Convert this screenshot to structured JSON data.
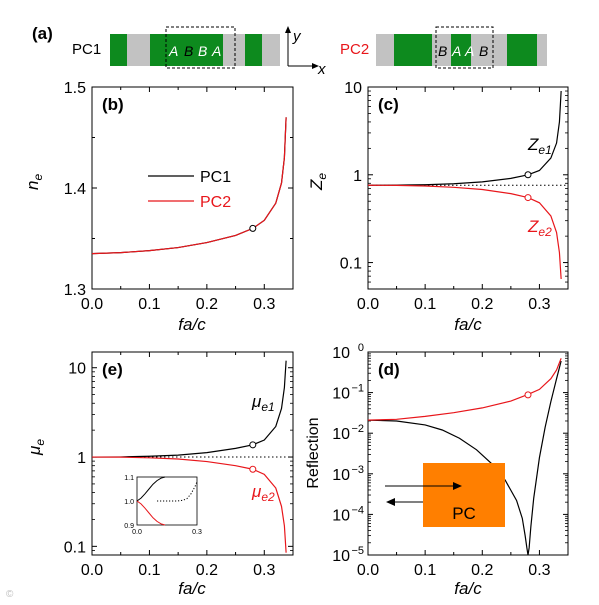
{
  "colors": {
    "pc1": "#000000",
    "pc2": "#e8161b",
    "green": "#0d8a1e",
    "gray": "#c2c2c2",
    "orange": "#ff7f00"
  },
  "panel_a": {
    "label": "(a)",
    "pc1_label": "PC1",
    "pc2_label": "PC2",
    "pc1_cell_letters": [
      "A",
      "B",
      "B",
      "A"
    ],
    "pc2_cell_letters": [
      "B",
      "A",
      "A",
      "B"
    ],
    "axis_x": "x",
    "axis_y": "y"
  },
  "chart_data": [
    {
      "id": "b",
      "type": "line",
      "panel_label": "(b)",
      "xlabel": "fa/c",
      "ylabel": "n_e",
      "ylabel_main": "n",
      "ylabel_sub": "e",
      "xlim": [
        0.0,
        0.35
      ],
      "ylim": [
        1.3,
        1.5
      ],
      "yscale": "linear",
      "xticks": [
        "0.0",
        "0.1",
        "0.2",
        "0.3"
      ],
      "yticks": [
        "1.3",
        "1.4",
        "1.5"
      ],
      "legend": {
        "placement": "upper-left",
        "entries": [
          "PC1",
          "PC2"
        ]
      },
      "series": [
        {
          "name": "PC1",
          "color": "#000000",
          "x": [
            0,
            0.05,
            0.1,
            0.15,
            0.2,
            0.25,
            0.28,
            0.3,
            0.32,
            0.33,
            0.335,
            0.338
          ],
          "y": [
            1.335,
            1.336,
            1.338,
            1.341,
            1.346,
            1.353,
            1.36,
            1.368,
            1.385,
            1.405,
            1.43,
            1.47
          ]
        },
        {
          "name": "PC2",
          "color": "#e8161b",
          "x": [
            0,
            0.05,
            0.1,
            0.15,
            0.2,
            0.25,
            0.28,
            0.3,
            0.32,
            0.33,
            0.335,
            0.338
          ],
          "y": [
            1.335,
            1.336,
            1.338,
            1.341,
            1.346,
            1.353,
            1.36,
            1.368,
            1.385,
            1.405,
            1.43,
            1.47
          ]
        }
      ],
      "markers": [
        {
          "x": 0.28,
          "y": 1.36,
          "color": "#000000"
        }
      ]
    },
    {
      "id": "c",
      "type": "line",
      "panel_label": "(c)",
      "xlabel": "fa/c",
      "ylabel": "Z_e",
      "ylabel_main": "Z",
      "ylabel_sub": "e",
      "xlim": [
        0.0,
        0.35
      ],
      "ylim": [
        0.05,
        10
      ],
      "yscale": "log",
      "xticks": [
        "0.0",
        "0.1",
        "0.2",
        "0.3"
      ],
      "yticks": [
        {
          "value": 0.1,
          "label": "0.1"
        },
        {
          "value": 1,
          "label": "1"
        },
        {
          "value": 10,
          "label": "10"
        }
      ],
      "reference_line": 0.76,
      "series": [
        {
          "name": "Z_e1",
          "label_main": "Z",
          "label_sub": "e1",
          "color": "#000000",
          "x": [
            0,
            0.05,
            0.1,
            0.15,
            0.2,
            0.25,
            0.28,
            0.3,
            0.32,
            0.33,
            0.335,
            0.338
          ],
          "y": [
            0.76,
            0.762,
            0.77,
            0.79,
            0.83,
            0.91,
            1.0,
            1.12,
            1.55,
            2.3,
            4.0,
            9.0
          ]
        },
        {
          "name": "Z_e2",
          "label_main": "Z",
          "label_sub": "e2",
          "color": "#e8161b",
          "x": [
            0,
            0.05,
            0.1,
            0.15,
            0.2,
            0.25,
            0.28,
            0.3,
            0.32,
            0.33,
            0.335,
            0.338
          ],
          "y": [
            0.76,
            0.758,
            0.745,
            0.72,
            0.68,
            0.61,
            0.55,
            0.48,
            0.34,
            0.22,
            0.13,
            0.065
          ]
        }
      ],
      "markers": [
        {
          "x": 0.28,
          "y": 1.0,
          "color": "#000000"
        },
        {
          "x": 0.28,
          "y": 0.55,
          "color": "#e8161b"
        }
      ]
    },
    {
      "id": "e",
      "type": "line",
      "panel_label": "(e)",
      "xlabel": "fa/c",
      "ylabel": "mu_e",
      "ylabel_main": "μ",
      "ylabel_sub": "e",
      "xlim": [
        0.0,
        0.35
      ],
      "ylim": [
        0.08,
        15
      ],
      "yscale": "log",
      "xticks": [
        "0.0",
        "0.1",
        "0.2",
        "0.3"
      ],
      "yticks": [
        {
          "value": 0.1,
          "label": "0.1"
        },
        {
          "value": 1,
          "label": "1"
        },
        {
          "value": 10,
          "label": "10"
        }
      ],
      "reference_line": 1.0,
      "series": [
        {
          "name": "mu_e1",
          "label_main": "μ",
          "label_sub": "e1",
          "color": "#000000",
          "x": [
            0,
            0.05,
            0.1,
            0.15,
            0.2,
            0.25,
            0.28,
            0.3,
            0.32,
            0.33,
            0.335,
            0.338
          ],
          "y": [
            1.0,
            1.003,
            1.02,
            1.05,
            1.12,
            1.25,
            1.37,
            1.55,
            2.2,
            3.5,
            6.0,
            12.0
          ]
        },
        {
          "name": "mu_e2",
          "label_main": "μ",
          "label_sub": "e2",
          "color": "#e8161b",
          "x": [
            0,
            0.05,
            0.1,
            0.15,
            0.2,
            0.25,
            0.28,
            0.3,
            0.32,
            0.33,
            0.335,
            0.338
          ],
          "y": [
            1.0,
            0.997,
            0.98,
            0.95,
            0.89,
            0.8,
            0.73,
            0.64,
            0.45,
            0.28,
            0.17,
            0.085
          ]
        }
      ],
      "markers": [
        {
          "x": 0.28,
          "y": 1.37,
          "color": "#000000"
        },
        {
          "x": 0.28,
          "y": 0.73,
          "color": "#e8161b"
        }
      ],
      "inset": {
        "xlim": [
          0.0,
          0.3
        ],
        "ylim": [
          0.9,
          1.1
        ],
        "xticks": [
          "0.0",
          "0.3"
        ],
        "yticks": [
          "0.9",
          "1.0",
          "1.1"
        ],
        "series": [
          {
            "name": "mu_e1",
            "color": "#000000",
            "x": [
              0,
              0.02,
              0.04,
              0.06,
              0.08,
              0.1,
              0.12,
              0.14
            ],
            "y": [
              1.0,
              1.012,
              1.03,
              1.05,
              1.07,
              1.085,
              1.095,
              1.1
            ]
          },
          {
            "name": "mu_e2",
            "color": "#e8161b",
            "x": [
              0,
              0.02,
              0.04,
              0.06,
              0.08,
              0.1,
              0.12,
              0.14
            ],
            "y": [
              1.0,
              0.988,
              0.97,
              0.95,
              0.93,
              0.915,
              0.905,
              0.9
            ]
          },
          {
            "name": "reference",
            "color": "#000000",
            "dotted": true,
            "x": [
              0.1,
              0.15,
              0.2,
              0.23,
              0.25,
              0.27,
              0.29,
              0.3
            ],
            "y": [
              1.0,
              1.0,
              1.0,
              1.003,
              1.01,
              1.03,
              1.06,
              1.08
            ]
          }
        ]
      }
    },
    {
      "id": "d",
      "type": "line",
      "panel_label": "(d)",
      "xlabel": "fa/c",
      "ylabel": "Reflection",
      "xlim": [
        0.0,
        0.35
      ],
      "ylim": [
        1e-05,
        1
      ],
      "yscale": "log",
      "xticks": [
        "0.0",
        "0.1",
        "0.2",
        "0.3"
      ],
      "yticks": [
        {
          "value": 1e-05,
          "base": "10",
          "exp": "−5"
        },
        {
          "value": 0.0001,
          "base": "10",
          "exp": "−4"
        },
        {
          "value": 0.001,
          "base": "10",
          "exp": "−3"
        },
        {
          "value": 0.01,
          "base": "10",
          "exp": "−2"
        },
        {
          "value": 0.1,
          "base": "10",
          "exp": "−1"
        },
        {
          "value": 1,
          "base": "10",
          "exp": "0"
        }
      ],
      "series": [
        {
          "name": "PC1",
          "color": "#000000",
          "x": [
            0,
            0.05,
            0.1,
            0.13,
            0.16,
            0.19,
            0.22,
            0.24,
            0.26,
            0.27,
            0.275,
            0.278,
            0.28,
            0.282,
            0.285,
            0.29,
            0.3,
            0.31,
            0.32,
            0.33,
            0.338
          ],
          "y": [
            0.021,
            0.02,
            0.016,
            0.012,
            0.0075,
            0.0039,
            0.0016,
            0.0007,
            0.00022,
            8e-05,
            3e-05,
            1.5e-05,
            1e-05,
            1.5e-05,
            5e-05,
            0.00025,
            0.0025,
            0.014,
            0.06,
            0.22,
            0.6
          ]
        },
        {
          "name": "PC2",
          "color": "#e8161b",
          "x": [
            0,
            0.05,
            0.1,
            0.15,
            0.2,
            0.25,
            0.28,
            0.3,
            0.32,
            0.33,
            0.338
          ],
          "y": [
            0.021,
            0.022,
            0.026,
            0.032,
            0.042,
            0.062,
            0.09,
            0.12,
            0.22,
            0.36,
            0.7
          ]
        }
      ],
      "markers": [
        {
          "x": 0.28,
          "y": 0.088,
          "color": "#e8161b"
        }
      ],
      "inset_box_label": "PC"
    }
  ]
}
